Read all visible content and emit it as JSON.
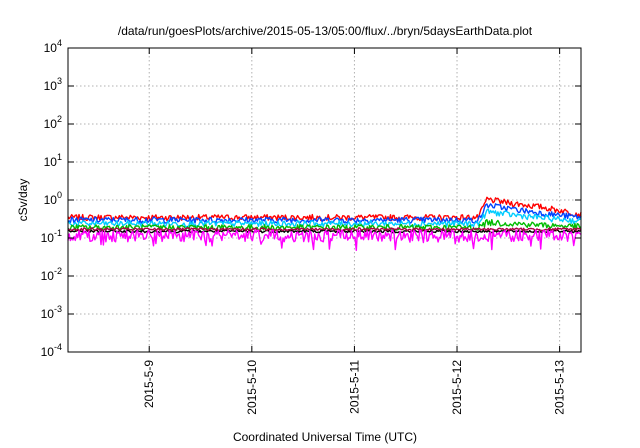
{
  "chart_data": {
    "type": "line",
    "title": "/data/run/goesPlots/archive/2015-05-13/05:00/flux/../bryn/5daysEarthData.plot",
    "xlabel": "Coordinated Universal Time (UTC)",
    "ylabel": "cSv/day",
    "y_scale": "log",
    "ylim": [
      0.0001,
      10000
    ],
    "y_ticks": [
      {
        "value": 0.0001,
        "mant": "10",
        "exp": "-4"
      },
      {
        "value": 0.001,
        "mant": "10",
        "exp": "-3"
      },
      {
        "value": 0.01,
        "mant": "10",
        "exp": "-2"
      },
      {
        "value": 0.1,
        "mant": "10",
        "exp": "-1"
      },
      {
        "value": 1,
        "mant": "10",
        "exp": "0"
      },
      {
        "value": 10,
        "mant": "10",
        "exp": "1"
      },
      {
        "value": 100,
        "mant": "10",
        "exp": "2"
      },
      {
        "value": 1000,
        "mant": "10",
        "exp": "3"
      },
      {
        "value": 10000,
        "mant": "10",
        "exp": "4"
      }
    ],
    "xlim": [
      "2015-05-08 05:00",
      "2015-05-13 05:00"
    ],
    "x_ticks": [
      {
        "value": "2015-05-09 00:00",
        "label": "2015-5-9"
      },
      {
        "value": "2015-05-10 00:00",
        "label": "2015-5-10"
      },
      {
        "value": "2015-05-11 00:00",
        "label": "2015-5-11"
      },
      {
        "value": "2015-05-12 00:00",
        "label": "2015-5-12"
      },
      {
        "value": "2015-05-13 00:00",
        "label": "2015-5-13"
      }
    ],
    "grid": true,
    "series": [
      {
        "color": "#ff0000",
        "points": [
          [
            "2015-05-08 05:00",
            0.35
          ],
          [
            "2015-05-12 05:00",
            0.35
          ],
          [
            "2015-05-12 07:00",
            1.05
          ],
          [
            "2015-05-12 12:00",
            0.85
          ],
          [
            "2015-05-12 20:00",
            0.65
          ],
          [
            "2015-05-13 05:00",
            0.42
          ]
        ]
      },
      {
        "color": "#0044ff",
        "points": [
          [
            "2015-05-08 05:00",
            0.3
          ],
          [
            "2015-05-12 05:00",
            0.3
          ],
          [
            "2015-05-12 07:00",
            0.75
          ],
          [
            "2015-05-12 12:00",
            0.6
          ],
          [
            "2015-05-12 20:00",
            0.45
          ],
          [
            "2015-05-13 05:00",
            0.35
          ]
        ]
      },
      {
        "color": "#00ccff",
        "points": [
          [
            "2015-05-08 05:00",
            0.24
          ],
          [
            "2015-05-12 05:00",
            0.24
          ],
          [
            "2015-05-12 07:00",
            0.5
          ],
          [
            "2015-05-12 12:00",
            0.42
          ],
          [
            "2015-05-12 20:00",
            0.34
          ],
          [
            "2015-05-13 05:00",
            0.28
          ]
        ]
      },
      {
        "color": "#00bb00",
        "points": [
          [
            "2015-05-08 05:00",
            0.19
          ],
          [
            "2015-05-12 05:00",
            0.19
          ],
          [
            "2015-05-12 07:00",
            0.26
          ],
          [
            "2015-05-12 20:00",
            0.22
          ],
          [
            "2015-05-13 05:00",
            0.2
          ]
        ]
      },
      {
        "color": "#000000",
        "points": [
          [
            "2015-05-08 05:00",
            0.15
          ],
          [
            "2015-05-13 05:00",
            0.15
          ]
        ]
      },
      {
        "color": "#aa0044",
        "points": [
          [
            "2015-05-08 05:00",
            0.17
          ],
          [
            "2015-05-13 05:00",
            0.17
          ]
        ]
      },
      {
        "color": "#ff00ff",
        "points": [
          [
            "2015-05-08 05:00",
            0.12
          ],
          [
            "2015-05-13 05:00",
            0.12
          ]
        ]
      }
    ]
  }
}
